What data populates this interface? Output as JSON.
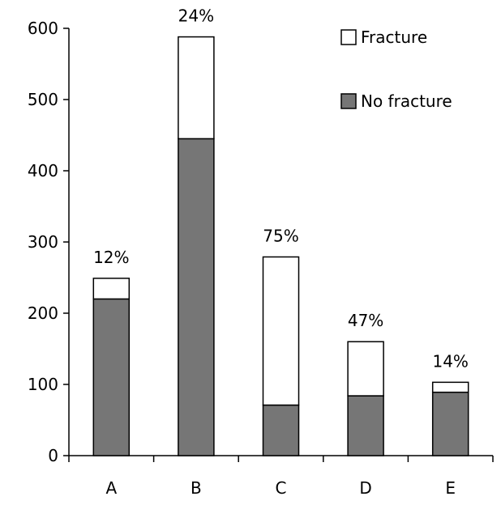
{
  "chart_data": {
    "type": "bar",
    "stacked": true,
    "title": "",
    "xlabel": "",
    "ylabel": "",
    "categories": [
      "A",
      "B",
      "C",
      "D",
      "E"
    ],
    "ylim": [
      0,
      600
    ],
    "yticks": [
      0,
      100,
      200,
      300,
      400,
      500,
      600
    ],
    "grid": false,
    "legend_position": "top-right",
    "series": [
      {
        "name": "No fracture",
        "color": "#767676",
        "values": [
          220,
          445,
          71,
          84,
          89
        ]
      },
      {
        "name": "Fracture",
        "color": "#ffffff",
        "values": [
          29,
          143,
          208,
          76,
          14
        ]
      }
    ],
    "legend_order": [
      "Fracture",
      "No fracture"
    ],
    "annotations": [
      "12%",
      "24%",
      "75%",
      "47%",
      "14%"
    ]
  }
}
